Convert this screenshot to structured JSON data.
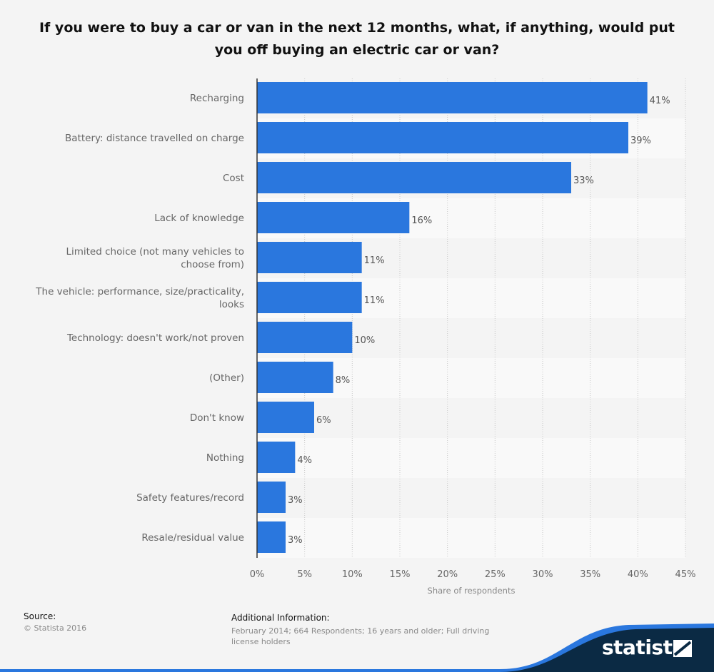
{
  "title": "If you were to buy a car or van in the next 12 months, what, if anything, would put you off buying an electric car or van?",
  "chart_data": {
    "type": "bar",
    "orientation": "horizontal",
    "categories": [
      "Recharging",
      "Battery: distance travelled on charge",
      "Cost",
      "Lack of knowledge",
      "Limited choice (not many vehicles to choose from)",
      "The vehicle: performance, size/practicality, looks",
      "Technology: doesn't work/not proven",
      "(Other)",
      "Don't know",
      "Nothing",
      "Safety features/record",
      "Resale/residual value"
    ],
    "category_lines": [
      [
        "Recharging"
      ],
      [
        "Battery: distance travelled on charge"
      ],
      [
        "Cost"
      ],
      [
        "Lack of knowledge"
      ],
      [
        "Limited choice (not many vehicles to",
        "choose from)"
      ],
      [
        "The vehicle: performance, size/practicality,",
        "looks"
      ],
      [
        "Technology: doesn't work/not proven"
      ],
      [
        "(Other)"
      ],
      [
        "Don't know"
      ],
      [
        "Nothing"
      ],
      [
        "Safety features/record"
      ],
      [
        "Resale/residual value"
      ]
    ],
    "values": [
      41,
      39,
      33,
      16,
      11,
      11,
      10,
      8,
      6,
      4,
      3,
      3
    ],
    "value_labels": [
      "41%",
      "39%",
      "33%",
      "16%",
      "11%",
      "11%",
      "10%",
      "8%",
      "6%",
      "4%",
      "3%",
      "3%"
    ],
    "xlabel": "Share of respondents",
    "xlim": [
      0,
      45
    ],
    "xticks": [
      0,
      5,
      10,
      15,
      20,
      25,
      30,
      35,
      40,
      45
    ],
    "xtick_labels": [
      "0%",
      "5%",
      "10%",
      "15%",
      "20%",
      "25%",
      "30%",
      "35%",
      "40%",
      "45%"
    ],
    "grid": true,
    "bar_color": "#2a77de"
  },
  "footer": {
    "source_label": "Source:",
    "source_text": "© Statista 2016",
    "additional_label": "Additional Information:",
    "additional_text": "February 2014; 664 Respondents; 16 years and older; Full driving license holders",
    "brand": "statista"
  },
  "colors": {
    "bar": "#2a77de",
    "brand_dark": "#0b2a44",
    "brand_blue": "#2a77de"
  }
}
